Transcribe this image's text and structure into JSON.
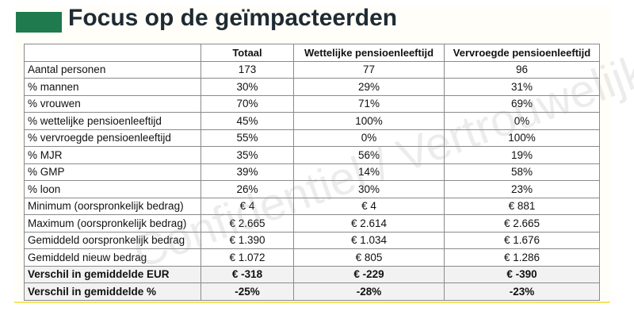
{
  "header": {
    "title": "Focus op de geïmpacteerden"
  },
  "watermark": "Confidentiel / Vertrouwelijk",
  "table": {
    "columns": [
      "Totaal",
      "Wettelijke pensioenleeftijd",
      "Vervroegde pensioenleeftijd"
    ],
    "rows": [
      [
        "Aantal personen",
        "173",
        "77",
        "96"
      ],
      [
        "% mannen",
        "30%",
        "29%",
        "31%"
      ],
      [
        "% vrouwen",
        "70%",
        "71%",
        "69%"
      ],
      [
        "% wettelijke pensioenleeftijd",
        "45%",
        "100%",
        "0%"
      ],
      [
        "% vervroegde pensioenleeftijd",
        "55%",
        "0%",
        "100%"
      ],
      [
        "% MJR",
        "35%",
        "56%",
        "19%"
      ],
      [
        "% GMP",
        "39%",
        "14%",
        "58%"
      ],
      [
        "% loon",
        "26%",
        "30%",
        "23%"
      ],
      [
        "Minimum (oorspronkelijk bedrag)",
        "€ 4",
        "€ 4",
        "€ 881"
      ],
      [
        "Maximum (oorspronkelijk bedrag)",
        "€ 2.665",
        "€ 2.614",
        "€ 2.665"
      ],
      [
        "Gemiddeld oorspronkelijk bedrag",
        "€ 1.390",
        "€ 1.034",
        "€ 1.676"
      ],
      [
        "Gemiddeld nieuw bedrag",
        "€ 1.072",
        "€ 805",
        "€ 1.286"
      ],
      [
        "Verschil in gemiddelde EUR",
        "€ -318",
        "€ -229",
        "€ -390"
      ],
      [
        "Verschil in gemiddelde %",
        "-25%",
        "-28%",
        "-23%"
      ]
    ]
  }
}
